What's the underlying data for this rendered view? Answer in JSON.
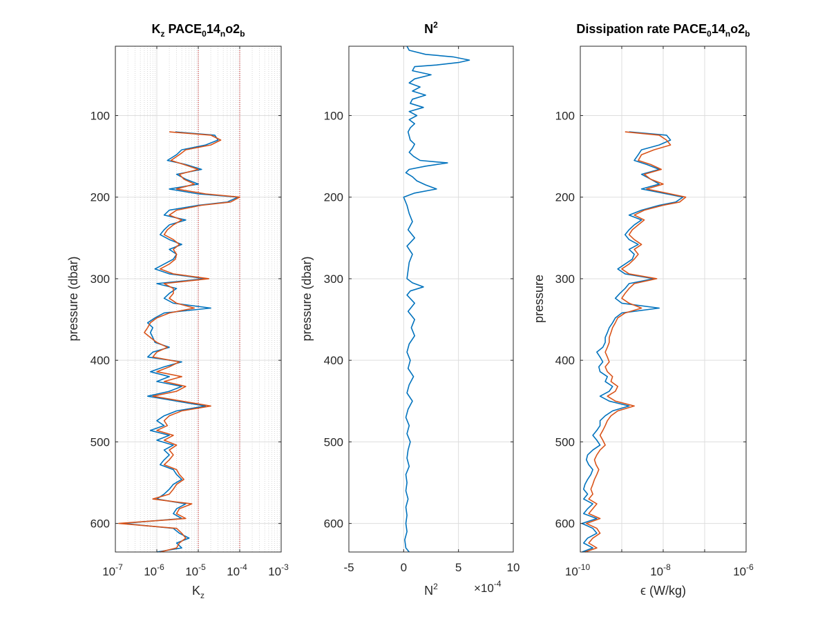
{
  "colors": {
    "series_blue": "#0072BD",
    "series_orange": "#D95319",
    "grid": "#DDDDDD",
    "minor_grid": "#BBBBBB",
    "threshold": "#CC0000",
    "axis": "#262626"
  },
  "panels": [
    {
      "title": "K",
      "title_sub": "z",
      "title_rest": " PACE",
      "title_sub2": "0",
      "title_mid": "14",
      "title_sub3": "n",
      "title_end": "o2",
      "title_sub4": "b",
      "xlabel": "K",
      "xlabel_sub": "z",
      "ylabel": "pressure (dbar)",
      "xticks": [
        "10",
        "10",
        "10",
        "10",
        "10"
      ],
      "xtick_exp": [
        "-7",
        "-6",
        "-5",
        "-4",
        "-3"
      ],
      "yticks": [
        "100",
        "200",
        "300",
        "400",
        "500",
        "600"
      ]
    },
    {
      "title": "N",
      "title_sup": "2",
      "xlabel": "N",
      "xlabel_sup": "2",
      "xmult": "×10",
      "xmult_exp": "-4",
      "ylabel": "pressure (dbar)",
      "xticks": [
        "-5",
        "0",
        "5",
        "10"
      ],
      "yticks": [
        "100",
        "200",
        "300",
        "400",
        "500",
        "600"
      ]
    },
    {
      "title": "Dissipation rate PACE",
      "title_sub": "0",
      "title_mid": "14",
      "title_sub2": "n",
      "title_end": "o2",
      "title_sub3": "b",
      "xlabel": "ϵ (W/kg)",
      "ylabel": "pressure",
      "xticks": [
        "10",
        "10",
        "10"
      ],
      "xtick_exp": [
        "-10",
        "-8",
        "-6"
      ],
      "yticks": [
        "100",
        "200",
        "300",
        "400",
        "500",
        "600"
      ]
    }
  ],
  "chart_data": [
    {
      "type": "line",
      "title": "K_z PACE_0 14_n o2_b",
      "xlabel": "K_z",
      "ylabel": "pressure (dbar)",
      "xscale": "log",
      "xlim": [
        1e-07,
        0.001
      ],
      "ylim": [
        635,
        15
      ],
      "yreversed": true,
      "grid": "major+minor",
      "reference_lines_x": [
        1e-05,
        0.0001
      ],
      "series": [
        {
          "y": [
            120,
            124,
            130,
            136,
            142,
            148,
            155,
            160,
            166,
            172,
            178,
            184,
            190,
            196,
            200,
            206,
            210,
            216,
            222,
            228,
            234,
            240,
            246,
            252,
            258,
            264,
            270,
            276,
            282,
            288,
            294,
            300,
            306,
            312,
            318,
            324,
            330,
            336,
            342,
            348,
            354,
            360,
            366,
            372,
            378,
            384,
            390,
            396,
            402,
            408,
            414,
            420,
            426,
            432,
            438,
            444,
            450,
            456,
            462,
            468,
            474,
            480,
            486,
            492,
            498,
            504,
            510,
            516,
            522,
            528,
            534,
            540,
            546,
            552,
            558,
            564,
            570,
            576,
            582,
            588,
            594,
            600,
            606,
            612,
            618,
            624,
            630,
            635
          ],
          "x": [
            2.8e-06,
            2.5e-05,
            3e-05,
            1.5e-05,
            4e-06,
            3e-06,
            1.8e-06,
            5e-06,
            1.2e-05,
            3e-06,
            5e-06,
            1e-05,
            2e-06,
            1e-05,
            9e-05,
            5e-05,
            1e-05,
            2e-06,
            1.5e-06,
            5e-06,
            2e-06,
            1.5e-06,
            1.2e-06,
            2e-06,
            4e-06,
            2e-06,
            3e-06,
            2.5e-06,
            1.5e-06,
            9e-07,
            2e-06,
            1.5e-05,
            1e-06,
            3e-06,
            2e-06,
            1.5e-06,
            2.5e-06,
            2e-05,
            1.5e-06,
            9e-07,
            6e-07,
            8e-07,
            7e-07,
            8e-07,
            9e-07,
            2e-06,
            8e-07,
            6e-07,
            4e-06,
            1.5e-06,
            7e-07,
            2e-06,
            1e-06,
            4e-06,
            2e-06,
            6e-07,
            3e-06,
            1.5e-05,
            3e-06,
            1.5e-06,
            1e-06,
            1.5e-06,
            7e-07,
            2e-06,
            1e-06,
            2.5e-06,
            1.5e-06,
            2e-06,
            1.5e-06,
            1.2e-06,
            2.5e-06,
            3e-06,
            4e-06,
            2.5e-06,
            2e-06,
            1.5e-06,
            1e-06,
            5e-06,
            3e-06,
            2.5e-06,
            4e-06,
            1.5e-07,
            2.5e-06,
            3.5e-06,
            6e-06,
            3e-06,
            4e-06,
            1e-06
          ]
        },
        {
          "y": [
            120,
            124,
            130,
            136,
            142,
            148,
            155,
            160,
            166,
            172,
            178,
            184,
            190,
            196,
            200,
            206,
            210,
            216,
            222,
            228,
            234,
            240,
            246,
            252,
            258,
            264,
            270,
            276,
            282,
            288,
            294,
            300,
            306,
            312,
            318,
            324,
            330,
            336,
            342,
            348,
            354,
            360,
            366,
            372,
            378,
            384,
            390,
            396,
            402,
            408,
            414,
            420,
            426,
            432,
            438,
            444,
            450,
            456,
            462,
            468,
            474,
            480,
            486,
            492,
            498,
            504,
            510,
            516,
            522,
            528,
            534,
            540,
            546,
            552,
            558,
            564,
            570,
            576,
            582,
            588,
            594,
            600,
            606,
            612,
            618,
            624,
            630,
            635
          ],
          "x": [
            2e-06,
            2e-05,
            3.5e-05,
            2e-05,
            5e-06,
            3.5e-06,
            2.2e-06,
            4.5e-06,
            1e-05,
            3.5e-06,
            4.5e-06,
            8e-06,
            3e-06,
            1.5e-05,
            0.0001,
            6e-05,
            1.2e-05,
            3e-06,
            2e-06,
            4e-06,
            2.5e-06,
            1.8e-06,
            1.5e-06,
            2.5e-06,
            3.5e-06,
            2.5e-06,
            3e-06,
            2.8e-06,
            2e-06,
            1.2e-06,
            2.5e-06,
            1.8e-05,
            1.5e-06,
            2.5e-06,
            2.5e-06,
            2e-06,
            3e-06,
            8e-06,
            2e-06,
            1e-06,
            7e-07,
            6e-07,
            5e-07,
            7e-07,
            1e-06,
            1.8e-06,
            1e-06,
            8e-07,
            3.5e-06,
            2e-06,
            1e-06,
            4e-06,
            1.5e-06,
            5e-06,
            3e-06,
            8e-07,
            4e-06,
            2e-05,
            4e-06,
            2e-06,
            1.5e-06,
            1.8e-06,
            1e-06,
            2.5e-06,
            1.5e-06,
            3e-06,
            2e-06,
            2.5e-06,
            2e-06,
            1.5e-06,
            3e-06,
            3.5e-06,
            4.5e-06,
            3e-06,
            2.5e-06,
            2e-06,
            8e-07,
            7e-06,
            3.5e-06,
            3e-06,
            5e-06,
            1.2e-07,
            3e-06,
            4e-06,
            5e-06,
            3.5e-06,
            3e-06,
            1.2e-06
          ]
        }
      ]
    },
    {
      "type": "line",
      "title": "N^2",
      "xlabel": "N^2",
      "x_multiplier": "×10^-4",
      "ylabel": "pressure (dbar)",
      "xlim": [
        -5,
        10
      ],
      "ylim": [
        635,
        15
      ],
      "yreversed": true,
      "grid": "major",
      "series": [
        {
          "y": [
            15,
            20,
            25,
            28,
            32,
            35,
            38,
            40,
            45,
            50,
            55,
            60,
            65,
            70,
            75,
            80,
            85,
            90,
            95,
            100,
            105,
            110,
            115,
            120,
            125,
            130,
            135,
            140,
            145,
            150,
            155,
            158,
            162,
            166,
            170,
            175,
            180,
            185,
            190,
            195,
            200,
            210,
            220,
            230,
            240,
            250,
            260,
            270,
            280,
            290,
            300,
            305,
            310,
            315,
            320,
            330,
            340,
            350,
            360,
            370,
            380,
            390,
            400,
            410,
            420,
            430,
            440,
            450,
            460,
            470,
            480,
            490,
            500,
            510,
            520,
            530,
            540,
            550,
            560,
            570,
            580,
            590,
            600,
            610,
            620,
            630,
            635
          ],
          "x": [
            0.3,
            0.5,
            2.0,
            4.5,
            6.0,
            5.0,
            3.0,
            1.0,
            0.8,
            2.5,
            1.0,
            0.5,
            1.5,
            0.8,
            2.0,
            0.8,
            0.6,
            1.8,
            0.5,
            1.2,
            0.5,
            1.0,
            0.6,
            0.4,
            0.5,
            0.6,
            1.0,
            0.8,
            0.5,
            0.9,
            1.5,
            4.0,
            2.0,
            0.5,
            0.2,
            0.8,
            1.2,
            2.0,
            3.0,
            1.0,
            0.0,
            0.3,
            0.5,
            0.8,
            0.4,
            1.0,
            0.3,
            0.8,
            0.5,
            0.4,
            0.3,
            0.8,
            1.8,
            0.6,
            0.3,
            1.0,
            0.4,
            1.0,
            0.7,
            1.0,
            0.5,
            0.3,
            0.6,
            0.4,
            0.9,
            0.5,
            0.3,
            0.8,
            0.4,
            0.2,
            0.5,
            0.3,
            0.6,
            0.4,
            0.3,
            0.5,
            0.2,
            0.3,
            0.2,
            0.4,
            0.2,
            0.3,
            0.2,
            0.3,
            0.1,
            0.2,
            0.5
          ]
        }
      ]
    },
    {
      "type": "line",
      "title": "Dissipation rate PACE_0 14_n o2_b",
      "xlabel": "ϵ (W/kg)",
      "ylabel": "pressure",
      "xscale": "log",
      "xlim": [
        1e-10,
        1e-06
      ],
      "ylim": [
        635,
        15
      ],
      "yreversed": true,
      "grid": "major",
      "series": [
        {
          "y": [
            120,
            124,
            130,
            136,
            142,
            148,
            155,
            160,
            166,
            172,
            178,
            184,
            190,
            196,
            200,
            206,
            210,
            216,
            222,
            228,
            234,
            240,
            246,
            252,
            258,
            264,
            270,
            276,
            282,
            288,
            294,
            300,
            306,
            312,
            318,
            324,
            330,
            336,
            342,
            348,
            354,
            360,
            366,
            372,
            378,
            384,
            390,
            396,
            402,
            408,
            414,
            420,
            426,
            432,
            438,
            444,
            450,
            456,
            462,
            468,
            474,
            480,
            486,
            492,
            498,
            504,
            510,
            516,
            522,
            528,
            534,
            540,
            546,
            552,
            558,
            564,
            570,
            576,
            582,
            588,
            594,
            600,
            606,
            612,
            618,
            624,
            630,
            635
          ],
          "x": [
            1.5e-09,
            1.2e-08,
            1.5e-08,
            8e-09,
            3e-09,
            2.5e-09,
            2e-09,
            4e-09,
            8e-09,
            3e-09,
            5e-09,
            8e-09,
            3e-09,
            1.2e-08,
            3e-08,
            2e-08,
            8e-09,
            3e-09,
            1.5e-09,
            3e-09,
            2e-09,
            1.5e-09,
            1.2e-09,
            1.5e-09,
            2.5e-09,
            1.5e-09,
            2e-09,
            1.8e-09,
            1.2e-09,
            8e-10,
            1.2e-09,
            6e-09,
            1.5e-09,
            1.2e-09,
            9e-10,
            7e-10,
            1e-09,
            8e-09,
            1e-09,
            7e-10,
            6e-10,
            5e-10,
            4.5e-10,
            4e-10,
            4e-10,
            3.5e-10,
            2.5e-10,
            3e-10,
            3.5e-10,
            2.8e-10,
            3e-10,
            4.5e-10,
            4e-10,
            6e-10,
            5e-10,
            3e-10,
            5e-10,
            1.5e-09,
            6e-10,
            4e-10,
            3e-10,
            3e-10,
            2.5e-10,
            2e-10,
            2.5e-10,
            3e-10,
            2e-10,
            1.5e-10,
            1.4e-10,
            1.6e-10,
            2e-10,
            1.8e-10,
            1.5e-10,
            1.3e-10,
            1.2e-10,
            1.5e-10,
            1.2e-10,
            2e-10,
            1.5e-10,
            1.2e-10,
            2.5e-10,
            1.1e-10,
            2e-10,
            2.5e-10,
            1.5e-10,
            1.2e-10,
            2e-10,
            1.1e-10
          ]
        },
        {
          "y": [
            120,
            124,
            130,
            136,
            142,
            148,
            155,
            160,
            166,
            172,
            178,
            184,
            190,
            196,
            200,
            206,
            210,
            216,
            222,
            228,
            234,
            240,
            246,
            252,
            258,
            264,
            270,
            276,
            282,
            288,
            294,
            300,
            306,
            312,
            318,
            324,
            330,
            336,
            342,
            348,
            354,
            360,
            366,
            372,
            378,
            384,
            390,
            396,
            402,
            408,
            414,
            420,
            426,
            432,
            438,
            444,
            450,
            456,
            462,
            468,
            474,
            480,
            486,
            492,
            498,
            504,
            510,
            516,
            522,
            528,
            534,
            540,
            546,
            552,
            558,
            564,
            570,
            576,
            582,
            588,
            594,
            600,
            606,
            612,
            618,
            624,
            630,
            635
          ],
          "x": [
            1.2e-09,
            8e-09,
            1.2e-08,
            1.5e-08,
            6e-09,
            3e-09,
            2.5e-09,
            5e-09,
            9e-09,
            3.5e-09,
            5e-09,
            1e-08,
            4e-09,
            1.5e-08,
            3.5e-08,
            2.5e-08,
            1e-08,
            3.5e-09,
            2e-09,
            3.5e-09,
            2.5e-09,
            1.8e-09,
            1.5e-09,
            2e-09,
            3e-09,
            2e-09,
            2.5e-09,
            2e-09,
            1.5e-09,
            1e-09,
            1.5e-09,
            7e-09,
            2e-09,
            1.5e-09,
            1.2e-09,
            1e-09,
            1.5e-09,
            3e-09,
            1.2e-09,
            8e-10,
            7e-10,
            6e-10,
            5.5e-10,
            5e-10,
            5e-10,
            4.5e-10,
            4e-10,
            4.5e-10,
            5e-10,
            4e-10,
            4.5e-10,
            6e-10,
            5.5e-10,
            8e-10,
            7e-10,
            4.5e-10,
            7e-10,
            2e-09,
            8e-10,
            5.5e-10,
            4.5e-10,
            4e-10,
            3.5e-10,
            3e-10,
            3.5e-10,
            4e-10,
            3e-10,
            2.5e-10,
            2.2e-10,
            2.4e-10,
            2.8e-10,
            2.5e-10,
            2.2e-10,
            2e-10,
            1.8e-10,
            2e-10,
            1.6e-10,
            2.5e-10,
            2e-10,
            1.6e-10,
            3e-10,
            1.4e-10,
            2.5e-10,
            3e-10,
            2e-10,
            1.6e-10,
            2.5e-10,
            1.3e-10
          ]
        }
      ]
    }
  ]
}
